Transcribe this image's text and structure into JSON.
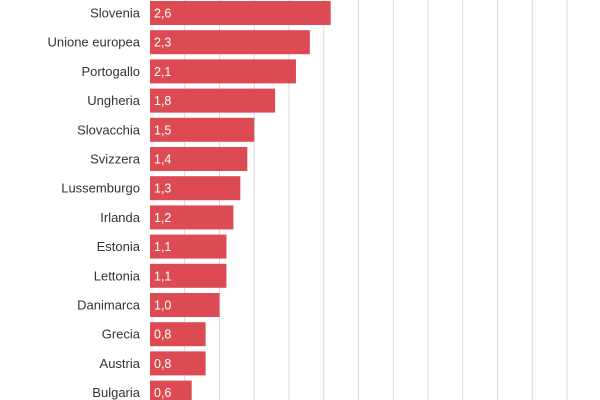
{
  "chart_data": {
    "type": "bar",
    "orientation": "horizontal",
    "bar_color": "#dc4b53",
    "grid": true,
    "xlim": [
      0,
      6.5
    ],
    "grid_step": 0.5,
    "categories": [
      "Slovenia",
      "Unione europea",
      "Portogallo",
      "Ungheria",
      "Slovacchia",
      "Svizzera",
      "Lussemburgo",
      "Irlanda",
      "Estonia",
      "Lettonia",
      "Danimarca",
      "Grecia",
      "Austria",
      "Bulgaria"
    ],
    "values": [
      2.6,
      2.3,
      2.1,
      1.8,
      1.5,
      1.4,
      1.3,
      1.2,
      1.1,
      1.1,
      1.0,
      0.8,
      0.8,
      0.6
    ],
    "value_labels": [
      "2,6",
      "2,3",
      "2,1",
      "1,8",
      "1,5",
      "1,4",
      "1,3",
      "1,2",
      "1,1",
      "1,1",
      "1,0",
      "0,8",
      "0,8",
      "0,6"
    ]
  }
}
